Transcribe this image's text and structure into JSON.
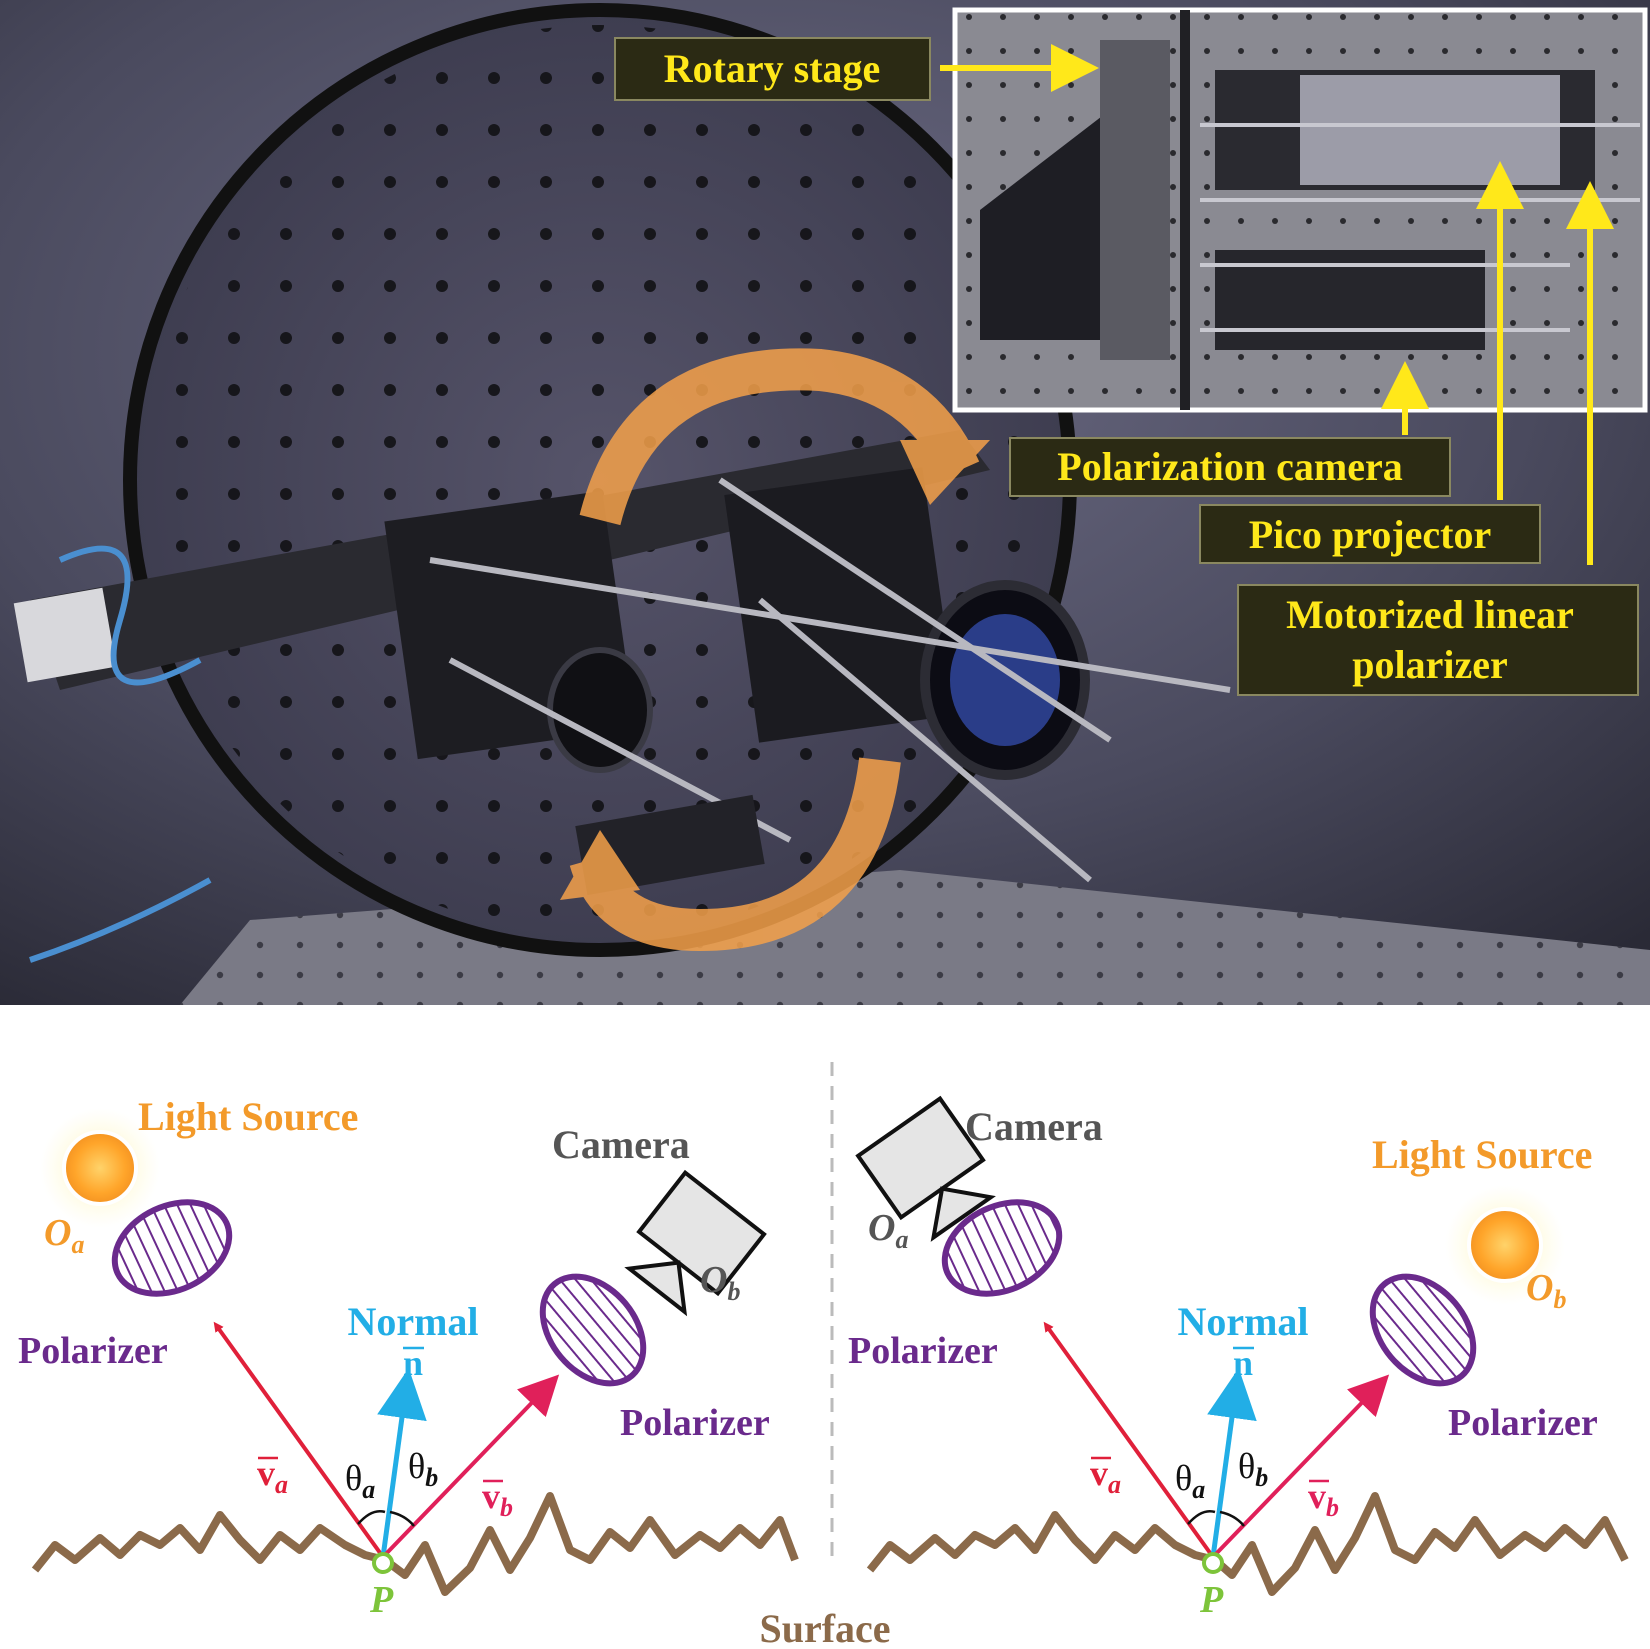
{
  "photo": {
    "labels": {
      "rotary_stage": "Rotary stage",
      "polarization_camera": "Polarization camera",
      "pico_projector": "Pico projector",
      "motorized_polarizer_line1": "Motorized linear",
      "motorized_polarizer_line2": "polarizer"
    },
    "colors": {
      "label_text": "#ffe81a",
      "label_bg": "#2b2a14",
      "arrow": "#ffe81a",
      "rotation_arrow": "#f5a14a"
    }
  },
  "diagram": {
    "left": {
      "light_source": "Light Source",
      "camera": "Camera",
      "origin_a": "O",
      "origin_a_sub": "a",
      "origin_b": "O",
      "origin_b_sub": "b",
      "polarizer_left": "Polarizer",
      "polarizer_right": "Polarizer",
      "normal": "Normal",
      "normal_vec": "n",
      "va": "v",
      "va_sub": "a",
      "vb": "v",
      "vb_sub": "b",
      "theta_a": "θ",
      "theta_a_sub": "a",
      "theta_b": "θ",
      "theta_b_sub": "b",
      "point": "P"
    },
    "right": {
      "light_source": "Light Source",
      "camera": "Camera",
      "origin_a": "O",
      "origin_a_sub": "a",
      "origin_b": "O",
      "origin_b_sub": "b",
      "polarizer_left": "Polarizer",
      "polarizer_right": "Polarizer",
      "normal": "Normal",
      "normal_vec": "n",
      "va": "v",
      "va_sub": "a",
      "vb": "v",
      "vb_sub": "b",
      "theta_a": "θ",
      "theta_a_sub": "a",
      "theta_b": "θ",
      "theta_b_sub": "b",
      "point": "P"
    },
    "surface": "Surface",
    "colors": {
      "light_source_text": "#f39a2a",
      "camera_text": "#555555",
      "polarizer": "#6a2a8c",
      "normal": "#22aee6",
      "incident": "#e0203a",
      "reflected": "#e0205a",
      "surface": "#8b6a4a",
      "point": "#7dc43a"
    }
  }
}
